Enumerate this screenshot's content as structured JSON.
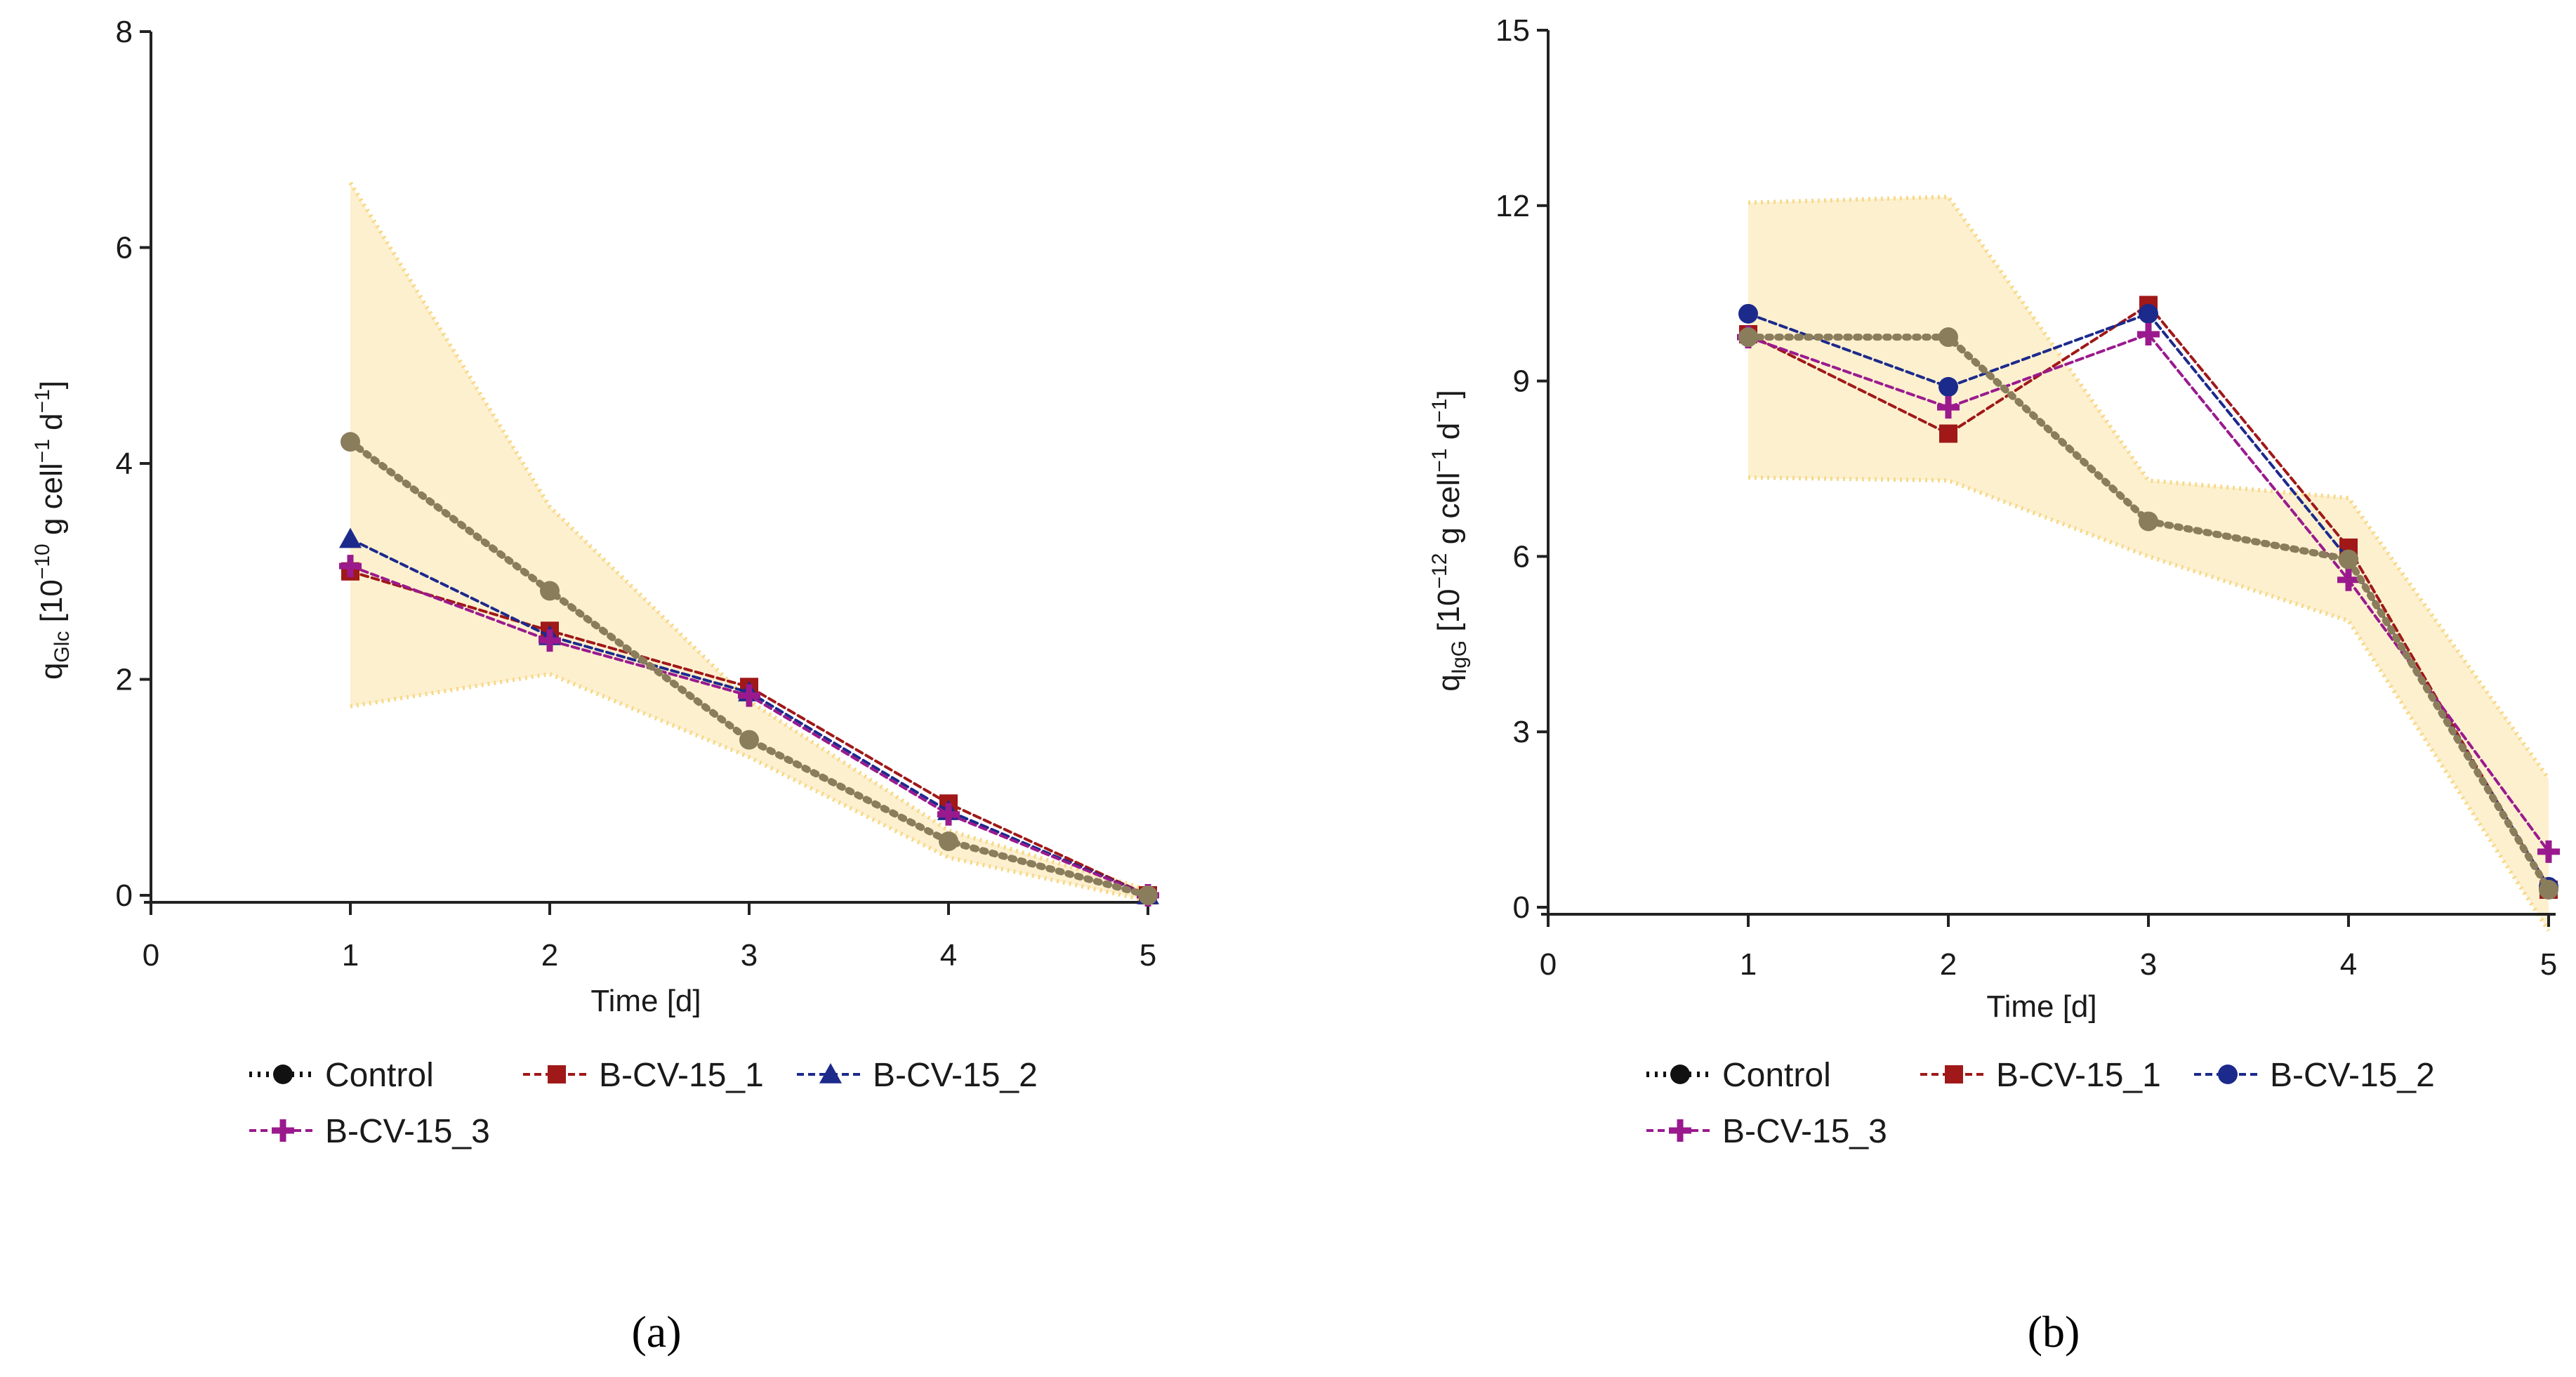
{
  "chart_data": [
    {
      "type": "line",
      "panel": "a",
      "ylabel_main": "q",
      "ylabel_sub": "Glc",
      "ylabel_prefix": " [10",
      "ylabel_exp1": "−10",
      "ylabel_mid": " g cell",
      "ylabel_exp2": "−1",
      "ylabel_mid2": " d",
      "ylabel_exp3": "−1",
      "ylabel_suffix": "]",
      "xlabel": "Time [d]",
      "xlim": [
        0,
        5
      ],
      "ylim": [
        0,
        8
      ],
      "xticks": [
        "0",
        "1",
        "2",
        "3",
        "4",
        "5"
      ],
      "yticks": [
        "0",
        "2",
        "4",
        "6",
        "8"
      ],
      "x": [
        1,
        2,
        3,
        4,
        5
      ],
      "band": {
        "upper": [
          6.6,
          3.6,
          1.8,
          0.6,
          0.05
        ],
        "lower": [
          1.75,
          2.05,
          1.28,
          0.35,
          -0.05
        ]
      },
      "series": [
        {
          "name": "Control",
          "values": [
            4.2,
            2.82,
            1.44,
            0.5,
            0.0
          ]
        },
        {
          "name": "B-CV-15_1",
          "values": [
            3.0,
            2.45,
            1.93,
            0.85,
            0.0
          ]
        },
        {
          "name": "B-CV-15_2",
          "values": [
            3.3,
            2.4,
            1.88,
            0.78,
            0.0
          ]
        },
        {
          "name": "B-CV-15_3",
          "values": [
            3.05,
            2.36,
            1.85,
            0.75,
            0.0
          ]
        }
      ],
      "caption": "(a)"
    },
    {
      "type": "line",
      "panel": "b",
      "ylabel_main": "q",
      "ylabel_sub": "IgG",
      "ylabel_prefix": " [10",
      "ylabel_exp1": "−12",
      "ylabel_mid": " g cell",
      "ylabel_exp2": "−1",
      "ylabel_mid2": " d",
      "ylabel_exp3": "−1",
      "ylabel_suffix": "]",
      "xlabel": "Time [d]",
      "xlim": [
        0,
        5
      ],
      "ylim": [
        0,
        15
      ],
      "xticks": [
        "0",
        "1",
        "2",
        "3",
        "4",
        "5"
      ],
      "yticks": [
        "0",
        "3",
        "6",
        "9",
        "12",
        "15"
      ],
      "x": [
        1,
        2,
        3,
        4,
        5
      ],
      "band": {
        "upper": [
          12.05,
          12.15,
          7.3,
          7.0,
          2.2
        ],
        "lower": [
          7.35,
          7.3,
          6.0,
          4.9,
          -0.4
        ]
      },
      "series": [
        {
          "name": "Control",
          "values": [
            9.75,
            9.75,
            6.6,
            5.95,
            0.3
          ]
        },
        {
          "name": "B-CV-15_1",
          "values": [
            9.8,
            8.1,
            10.3,
            6.15,
            0.3
          ]
        },
        {
          "name": "B-CV-15_2",
          "values": [
            10.15,
            8.9,
            10.15,
            5.95,
            0.35
          ]
        },
        {
          "name": "B-CV-15_3",
          "values": [
            9.75,
            8.55,
            9.8,
            5.6,
            0.95
          ]
        }
      ],
      "caption": "(b)"
    }
  ],
  "styles": {
    "band_fill": "#fdf0cf",
    "band_edge": "#f7d98a",
    "Control": "#8a7d5c",
    "Control_legend": "#111111",
    "B-CV-15_1": "#a01818",
    "B-CV-15_2": "#1c2a8c",
    "B-CV-15_3": "#9a1a8e",
    "axis": "#222222"
  },
  "legend_a": [
    "Control",
    "B-CV-15_1",
    "B-CV-15_2",
    "B-CV-15_3"
  ],
  "legend_b": [
    "Control",
    "B-CV-15_1",
    "B-CV-15_2",
    "B-CV-15_3"
  ]
}
